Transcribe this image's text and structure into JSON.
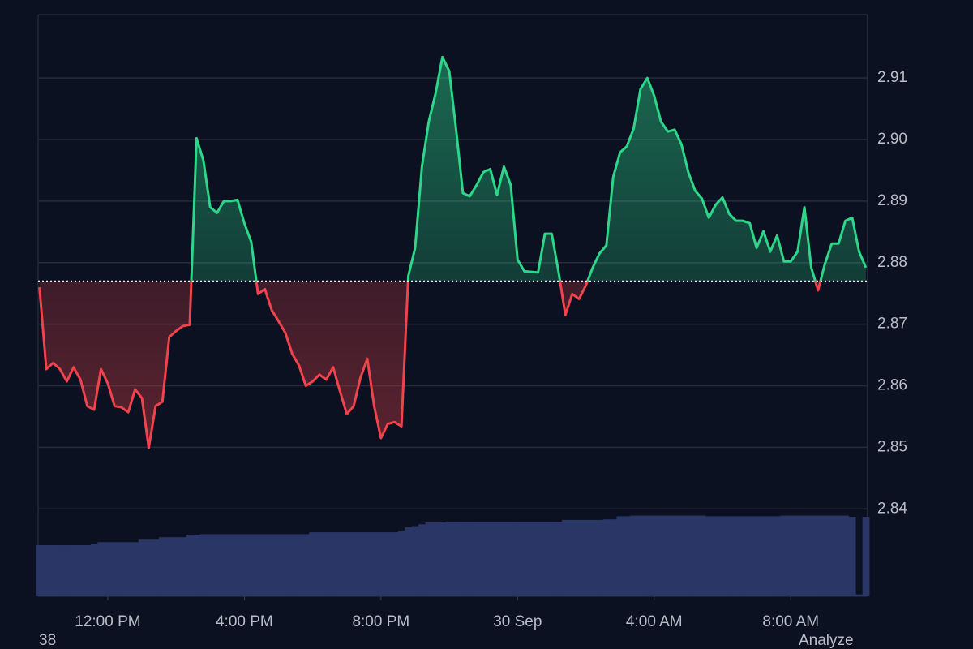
{
  "chart_data": {
    "type": "baseline",
    "x": [
      10.0,
      10.2,
      10.4,
      10.6,
      10.8,
      11.0,
      11.2,
      11.4,
      11.6,
      11.8,
      12.0,
      12.2,
      12.4,
      12.6,
      12.8,
      13.0,
      13.2,
      13.4,
      13.6,
      13.8,
      14.0,
      14.2,
      14.4,
      14.6,
      14.8,
      15.0,
      15.2,
      15.4,
      15.6,
      15.8,
      16.0,
      16.2,
      16.4,
      16.6,
      16.8,
      17.0,
      17.2,
      17.4,
      17.6,
      17.8,
      18.0,
      18.2,
      18.4,
      18.6,
      18.8,
      19.0,
      19.2,
      19.4,
      19.6,
      19.8,
      20.0,
      20.2,
      20.4,
      20.6,
      20.8,
      21.0,
      21.2,
      21.4,
      21.6,
      21.8,
      22.0,
      22.2,
      22.4,
      22.6,
      22.8,
      23.0,
      23.2,
      23.4,
      23.6,
      23.8,
      24.0,
      24.2,
      24.4,
      24.6,
      24.8,
      25.0,
      25.2,
      25.4,
      25.6,
      25.8,
      26.0,
      26.2,
      26.4,
      26.6,
      26.8,
      27.0,
      27.2,
      27.4,
      27.6,
      27.8,
      28.0,
      28.2,
      28.4,
      28.6,
      28.8,
      29.0,
      29.2,
      29.4,
      29.6,
      29.8,
      30.0,
      30.2,
      30.4,
      30.6,
      30.8,
      31.0,
      31.2,
      31.4,
      31.6,
      31.8,
      32.0,
      32.2,
      32.4,
      32.6,
      32.8,
      33.0,
      33.2,
      33.4,
      33.6,
      33.8,
      34.0,
      34.2
    ],
    "series": [
      {
        "values": [
          2.876,
          2.8627,
          2.8637,
          2.8627,
          2.8607,
          2.863,
          2.861,
          2.8567,
          2.8561,
          2.8627,
          2.8604,
          2.8567,
          2.8565,
          2.8557,
          2.8594,
          2.858,
          2.8499,
          2.8567,
          2.8574,
          2.8679,
          2.8689,
          2.8697,
          2.8699,
          2.9002,
          2.8966,
          2.889,
          2.8881,
          2.89,
          2.89,
          2.8902,
          2.8864,
          2.8834,
          2.8749,
          2.8757,
          2.8723,
          2.8705,
          2.8686,
          2.8652,
          2.8633,
          2.86,
          2.8607,
          2.8618,
          2.861,
          2.863,
          2.8591,
          2.8554,
          2.8567,
          2.8613,
          2.8644,
          2.8567,
          2.8515,
          2.8538,
          2.8541,
          2.8534,
          2.8778,
          2.8824,
          2.8956,
          2.9029,
          2.9075,
          2.9134,
          2.9111,
          2.9016,
          2.8913,
          2.8908,
          2.8926,
          2.8947,
          2.8952,
          2.891,
          2.8956,
          2.8926,
          2.8805,
          2.8786,
          2.8785,
          2.8784,
          2.8847,
          2.8847,
          2.8785,
          2.8715,
          2.8749,
          2.8741,
          2.8763,
          2.8792,
          2.8815,
          2.8828,
          2.8939,
          2.8979,
          2.8989,
          2.9018,
          2.9082,
          2.91,
          2.9071,
          2.9029,
          2.9013,
          2.9016,
          2.8992,
          2.8947,
          2.8917,
          2.8904,
          2.8873,
          2.8894,
          2.8906,
          2.8879,
          2.8868,
          2.8868,
          2.8864,
          2.8824,
          2.8851,
          2.8818,
          2.8844,
          2.8802,
          2.8802,
          2.8818,
          2.889,
          2.8792,
          2.8755,
          2.8798,
          2.8831,
          2.8831,
          2.8868,
          2.8873,
          2.8818,
          2.8792
        ]
      },
      {
        "values": [
          2.8341,
          2.8341,
          2.8341,
          2.8341,
          2.8341,
          2.8341,
          2.8341,
          2.8341,
          2.8343,
          2.8346,
          2.8346,
          2.8346,
          2.8346,
          2.8346,
          2.8346,
          2.835,
          2.835,
          2.835,
          2.8354,
          2.8354,
          2.8354,
          2.8354,
          2.8358,
          2.8358,
          2.8359,
          2.8359,
          2.8359,
          2.8359,
          2.8359,
          2.8359,
          2.8359,
          2.8359,
          2.8359,
          2.8359,
          2.8359,
          2.8359,
          2.8359,
          2.8359,
          2.8359,
          2.8359,
          2.8362,
          2.8362,
          2.8362,
          2.8362,
          2.8362,
          2.8362,
          2.8362,
          2.8362,
          2.8362,
          2.8362,
          2.8362,
          2.8362,
          2.8362,
          2.8364,
          2.837,
          2.8372,
          2.8375,
          2.8378,
          2.8378,
          2.8378,
          2.8379,
          2.8379,
          2.8379,
          2.8379,
          2.8379,
          2.8379,
          2.8379,
          2.8379,
          2.8379,
          2.8379,
          2.8379,
          2.8379,
          2.8379,
          2.8379,
          2.8379,
          2.8379,
          2.8379,
          2.8382,
          2.8382,
          2.8382,
          2.8382,
          2.8382,
          2.8382,
          2.8383,
          2.8383,
          2.8388,
          2.8388,
          2.8389,
          2.8389,
          2.8389,
          2.8389,
          2.8389,
          2.8389,
          2.8389,
          2.8389,
          2.8389,
          2.8389,
          2.8389,
          2.8388,
          2.8388,
          2.8388,
          2.8388,
          2.8388,
          2.8388,
          2.8388,
          2.8388,
          2.8388,
          2.8388,
          2.8388,
          2.8389,
          2.8389,
          2.8389,
          2.8389,
          2.8389,
          2.8389,
          2.8389,
          2.8389,
          2.8389,
          2.8389,
          2.8387,
          2.8261,
          2.8387
        ]
      }
    ],
    "baseline": 2.877,
    "up_color": "#2ed68a",
    "down_color": "#f0434c",
    "volume_color": "#2a3766",
    "xlim": [
      9.96,
      34.25
    ],
    "ylim": [
      2.8258,
      2.9203
    ],
    "xticks": [
      {
        "value": 12,
        "label": "12:00 PM"
      },
      {
        "value": 16,
        "label": "4:00 PM"
      },
      {
        "value": 20,
        "label": "8:00 PM"
      },
      {
        "value": 24,
        "label": "30 Sep"
      },
      {
        "value": 28,
        "label": "4:00 AM"
      },
      {
        "value": 32,
        "label": "8:00 AM"
      }
    ],
    "yticks": [
      2.84,
      2.85,
      2.86,
      2.87,
      2.88,
      2.89,
      {
        "value": 2.9,
        "label": "2.90"
      },
      2.91
    ],
    "grid": true,
    "annotations": [
      "38",
      "Analyze"
    ]
  }
}
